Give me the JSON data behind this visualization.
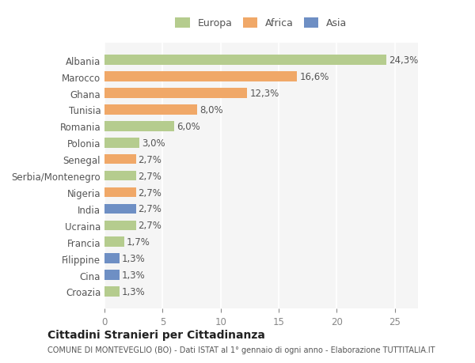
{
  "categories": [
    "Croazia",
    "Cina",
    "Filippine",
    "Francia",
    "Ucraina",
    "India",
    "Nigeria",
    "Serbia/Montenegro",
    "Senegal",
    "Polonia",
    "Romania",
    "Tunisia",
    "Ghana",
    "Marocco",
    "Albania"
  ],
  "values": [
    1.3,
    1.3,
    1.3,
    1.7,
    2.7,
    2.7,
    2.7,
    2.7,
    2.7,
    3.0,
    6.0,
    8.0,
    12.3,
    16.6,
    24.3
  ],
  "labels": [
    "1,3%",
    "1,3%",
    "1,3%",
    "1,7%",
    "2,7%",
    "2,7%",
    "2,7%",
    "2,7%",
    "2,7%",
    "3,0%",
    "6,0%",
    "8,0%",
    "12,3%",
    "16,6%",
    "24,3%"
  ],
  "continents": [
    "Europa",
    "Asia",
    "Asia",
    "Europa",
    "Europa",
    "Asia",
    "Africa",
    "Europa",
    "Africa",
    "Europa",
    "Europa",
    "Africa",
    "Africa",
    "Africa",
    "Europa"
  ],
  "colors": {
    "Europa": "#b5cc8e",
    "Africa": "#f0a868",
    "Asia": "#6e8fc4"
  },
  "legend_colors": {
    "Europa": "#b5cc8e",
    "Africa": "#f0a868",
    "Asia": "#6e8fc4"
  },
  "xlim": [
    0,
    27
  ],
  "xticks": [
    0,
    5,
    10,
    15,
    20,
    25
  ],
  "title": "Cittadini Stranieri per Cittadinanza",
  "subtitle": "COMUNE DI MONTEVEGLIO (BO) - Dati ISTAT al 1° gennaio di ogni anno - Elaborazione TUTTITALIA.IT",
  "bg_color": "#ffffff",
  "plot_bg_color": "#f5f5f5",
  "grid_color": "#ffffff",
  "bar_height": 0.6
}
